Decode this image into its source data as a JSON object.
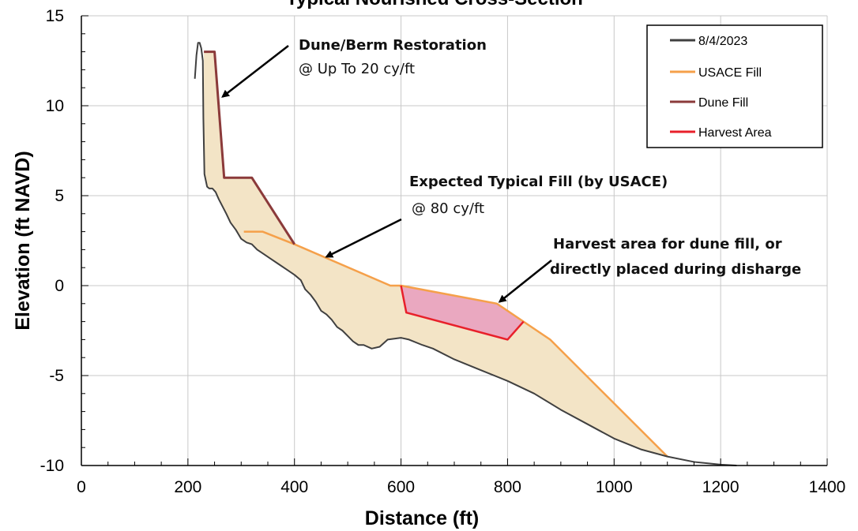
{
  "chart_data": {
    "type": "line",
    "title": "Typical Nourished Cross-Section",
    "xlabel": "Distance (ft)",
    "ylabel": "Elevation (ft NAVD)",
    "xlim": [
      0,
      1400
    ],
    "ylim": [
      -10,
      15
    ],
    "x_ticks": [
      "0",
      "200",
      "400",
      "600",
      "800",
      "1000",
      "1200",
      "1400"
    ],
    "y_ticks": [
      "-10",
      "-5",
      "0",
      "5",
      "10",
      "15"
    ],
    "grid": true,
    "legend_position": "top-right",
    "legend": [
      "8/4/2023",
      "USACE Fill",
      "Dune Fill",
      "Harvest Area"
    ],
    "colors": {
      "profile": "#404040",
      "usace_fill": "#f5a04a",
      "dune_fill": "#8b3a3a",
      "harvest": "#e8202a",
      "fill_area": "#f3e4c6",
      "harvest_area": "#eaa8c0"
    },
    "series": [
      {
        "name": "8/4/2023",
        "x": [
          213,
          216,
          219,
          222,
          225,
          228,
          229,
          231,
          236,
          240,
          246,
          252,
          258,
          265,
          272,
          280,
          290,
          300,
          310,
          320,
          330,
          340,
          355,
          370,
          385,
          400,
          412,
          420,
          430,
          440,
          450,
          460,
          470,
          480,
          490,
          500,
          510,
          520,
          530,
          545,
          560,
          575,
          600,
          615,
          640,
          660,
          700,
          750,
          800,
          850,
          900,
          950,
          1000,
          1050,
          1100,
          1150,
          1200,
          1230
        ],
        "y": [
          11.5,
          12.8,
          13.5,
          13.5,
          13.2,
          12.5,
          9.3,
          6.2,
          5.5,
          5.4,
          5.4,
          5.2,
          4.8,
          4.4,
          4.0,
          3.5,
          3.1,
          2.6,
          2.4,
          2.3,
          2.0,
          1.8,
          1.5,
          1.2,
          0.9,
          0.6,
          0.3,
          -0.2,
          -0.5,
          -0.9,
          -1.4,
          -1.6,
          -1.9,
          -2.3,
          -2.5,
          -2.8,
          -3.1,
          -3.3,
          -3.3,
          -3.5,
          -3.4,
          -3.0,
          -2.9,
          -3.0,
          -3.3,
          -3.5,
          -4.1,
          -4.7,
          -5.3,
          -6.0,
          -6.9,
          -7.7,
          -8.5,
          -9.1,
          -9.5,
          -9.8,
          -9.95,
          -10.0
        ]
      },
      {
        "name": "USACE Fill",
        "x": [
          305,
          340,
          400,
          580,
          600,
          780,
          830,
          880,
          1100
        ],
        "y": [
          3.0,
          3.0,
          2.3,
          0.0,
          0.0,
          -1.0,
          -2.0,
          -3.0,
          -9.5
        ]
      },
      {
        "name": "Dune Fill",
        "x": [
          230,
          240,
          250,
          268,
          320,
          400
        ],
        "y": [
          13.0,
          13.0,
          13.0,
          6.0,
          6.0,
          2.3
        ]
      },
      {
        "name": "Harvest Area",
        "x": [
          600,
          610,
          800,
          830
        ],
        "y": [
          0.0,
          -1.5,
          -3.0,
          -2.0
        ]
      }
    ],
    "annotations": [
      {
        "title": "Dune/Berm Restoration",
        "detail": "@ Up To 20 cy/ft",
        "arrow_to": [
          265,
          10.5
        ]
      },
      {
        "title": "Expected Typical Fill (by USACE)",
        "detail": "@ 80 cy/ft",
        "arrow_to": [
          460,
          1.6
        ]
      },
      {
        "title": "Harvest area for dune fill, or",
        "detail": "directly placed during disharge",
        "arrow_to": [
          785,
          -0.9
        ]
      }
    ]
  }
}
